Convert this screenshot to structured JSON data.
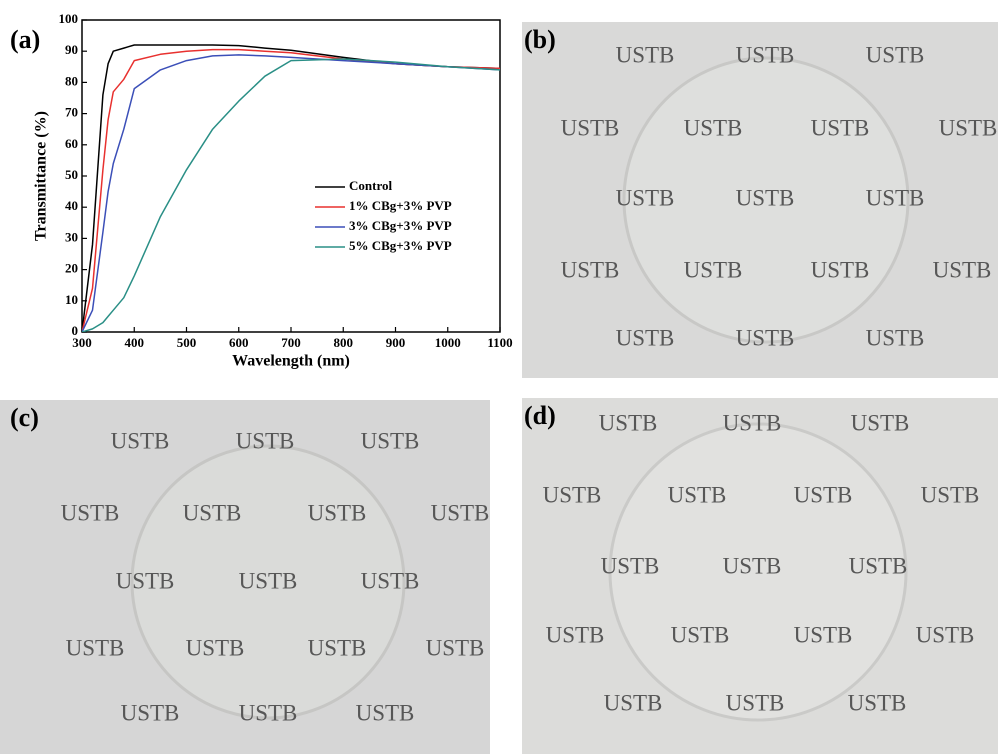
{
  "chart_data": {
    "type": "line",
    "panel_label": "(a)",
    "x_label": "Wavelength (nm)",
    "y_label": "Transmittance (%)",
    "x": [
      300,
      320,
      340,
      350,
      360,
      380,
      400,
      450,
      500,
      550,
      600,
      650,
      700,
      800,
      900,
      1000,
      1100
    ],
    "series": [
      {
        "name": "Control",
        "color": "#000000",
        "values": [
          0,
          28,
          76,
          86,
          90,
          91,
          92,
          92,
          92,
          92,
          91.8,
          91,
          90.3,
          88,
          86,
          85,
          84.5
        ]
      },
      {
        "name": "1% CBg+3% PVP",
        "color": "#e8312f",
        "values": [
          0,
          14,
          52,
          68,
          77,
          81,
          87,
          89,
          90,
          90.5,
          90.5,
          90,
          89.5,
          87.5,
          86,
          85,
          84.5
        ]
      },
      {
        "name": "3% CBg+3% PVP",
        "color": "#3b4fb8",
        "values": [
          0,
          7,
          32,
          45,
          54,
          65,
          78,
          84,
          87,
          88.5,
          88.8,
          88.5,
          88,
          87,
          86,
          85,
          84
        ]
      },
      {
        "name": "5% CBg+3% PVP",
        "color": "#2a8f86",
        "values": [
          0,
          1,
          3,
          5,
          7,
          11,
          18,
          37,
          52,
          65,
          74,
          82,
          87,
          87.5,
          86.5,
          85,
          84
        ]
      }
    ],
    "xlim": [
      300,
      1100
    ],
    "ylim": [
      0,
      100
    ],
    "xticks": [
      300,
      400,
      500,
      600,
      700,
      800,
      900,
      1000,
      1100
    ],
    "yticks": [
      0,
      10,
      20,
      30,
      40,
      50,
      60,
      70,
      80,
      90,
      100
    ],
    "legend": "center-right"
  },
  "photos": [
    {
      "label": "(b)",
      "words": [
        "USTB",
        "USTB",
        "USTB",
        "USTB",
        "USTB",
        "USTB",
        "USTB",
        "USTB",
        "USTB",
        "USTB",
        "USTB",
        "USTB",
        "USTB",
        "USTB",
        "USTB",
        "USTB",
        "USTB"
      ]
    },
    {
      "label": "(c)",
      "words": [
        "USTB",
        "USTB",
        "USTB",
        "USTB",
        "USTB",
        "USTB",
        "USTB",
        "USTB",
        "USTB",
        "USTB",
        "USTB",
        "USTB",
        "USTB",
        "USTB",
        "USTB",
        "USTB",
        "USTB"
      ]
    },
    {
      "label": "(d)",
      "words": [
        "USTB",
        "USTB",
        "USTB",
        "USTB",
        "USTB",
        "USTB",
        "USTB",
        "USTB",
        "USTB",
        "USTB",
        "USTB",
        "USTB",
        "USTB",
        "USTB",
        "USTB",
        "USTB",
        "USTB"
      ]
    }
  ]
}
